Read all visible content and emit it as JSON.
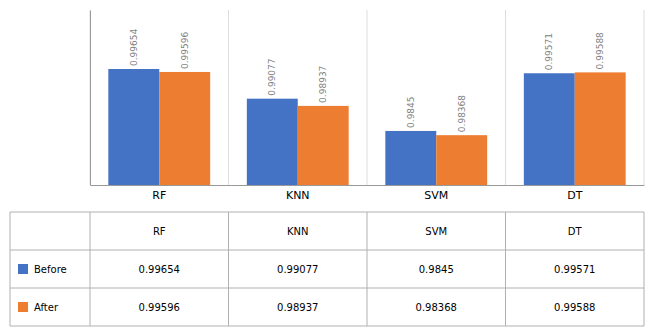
{
  "chart_data": {
    "type": "bar",
    "categories": [
      "RF",
      "KNN",
      "SVM",
      "DT"
    ],
    "series": [
      {
        "name": "Before",
        "color": "#4472C4",
        "values": [
          0.99654,
          0.99077,
          0.9845,
          0.99571
        ]
      },
      {
        "name": "After",
        "color": "#ED7D31",
        "values": [
          0.99596,
          0.98937,
          0.98368,
          0.99588
        ]
      }
    ],
    "ylim": [
      0.974,
      1.008
    ],
    "data_labels": true,
    "tick_labels": "x"
  }
}
